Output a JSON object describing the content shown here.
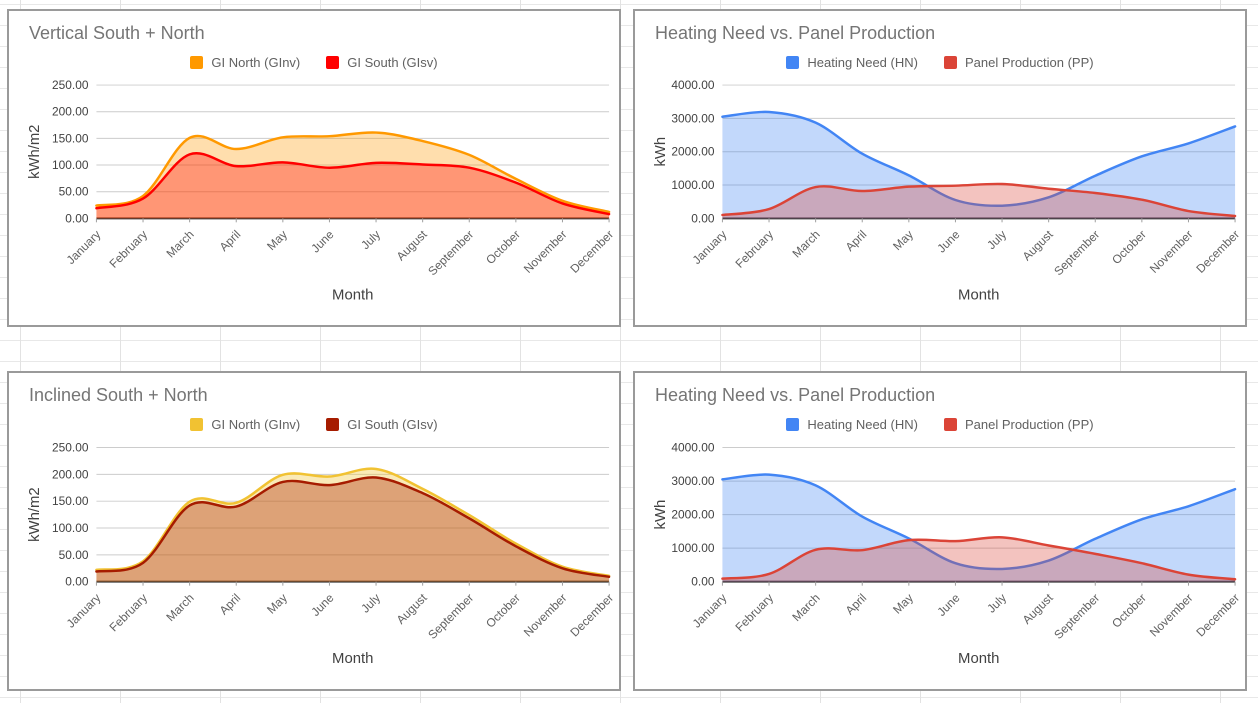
{
  "app": {
    "grid_line_color": "#e2e2e2",
    "card_border_color": "#9a9a9a",
    "title_color": "#757575",
    "axis_text_color": "#424242",
    "tick_text_color": "#616161",
    "gridline_color": "#cccccc"
  },
  "chart_data": [
    {
      "type": "area",
      "title": "Vertical South + North",
      "xlabel": "Month",
      "ylabel": "kWh/m2",
      "ylim": [
        0,
        250
      ],
      "y_ticks": [
        "0.00",
        "50.00",
        "100.00",
        "150.00",
        "200.00",
        "250.00"
      ],
      "grid": true,
      "legend_position": "top",
      "smooth": true,
      "fill_opacity": 0.32,
      "categories": [
        "January",
        "February",
        "March",
        "April",
        "May",
        "June",
        "July",
        "August",
        "September",
        "October",
        "November",
        "December"
      ],
      "series": [
        {
          "name": "GI North (GInv)",
          "color": "#ff9900",
          "values": [
            24,
            42,
            151,
            130,
            152,
            154,
            161,
            145,
            119,
            74,
            33,
            12
          ]
        },
        {
          "name": "GI South (GIsv)",
          "color": "#ff0000",
          "values": [
            19,
            37,
            120,
            98,
            105,
            95,
            104,
            101,
            95,
            67,
            28,
            8
          ]
        }
      ]
    },
    {
      "type": "area",
      "title": "Heating Need vs. Panel Production",
      "xlabel": "Month",
      "ylabel": "kWh",
      "ylim": [
        0,
        4000
      ],
      "y_ticks": [
        "0.00",
        "1000.00",
        "2000.00",
        "3000.00",
        "4000.00"
      ],
      "grid": true,
      "legend_position": "top",
      "smooth": true,
      "fill_opacity": 0.32,
      "categories": [
        "January",
        "February",
        "March",
        "April",
        "May",
        "June",
        "July",
        "August",
        "September",
        "October",
        "November",
        "December"
      ],
      "series": [
        {
          "name": "Heating Need (HN)",
          "color": "#4285f4",
          "values": [
            3050,
            3190,
            2870,
            1940,
            1290,
            550,
            380,
            630,
            1280,
            1860,
            2250,
            2760
          ]
        },
        {
          "name": "Panel Production (PP)",
          "color": "#db4437",
          "values": [
            100,
            280,
            940,
            820,
            950,
            980,
            1030,
            890,
            760,
            560,
            220,
            70
          ]
        }
      ]
    },
    {
      "type": "area",
      "title": "Inclined South + North",
      "xlabel": "Month",
      "ylabel": "kWh/m2",
      "ylim": [
        0,
        250
      ],
      "y_ticks": [
        "0.00",
        "50.00",
        "100.00",
        "150.00",
        "200.00",
        "250.00"
      ],
      "grid": true,
      "legend_position": "top",
      "smooth": true,
      "fill_opacity": 0.35,
      "categories": [
        "January",
        "February",
        "March",
        "April",
        "May",
        "June",
        "July",
        "August",
        "September",
        "October",
        "November",
        "December"
      ],
      "series": [
        {
          "name": "GI North (GInv)",
          "color": "#f1c232",
          "values": [
            22,
            38,
            149,
            147,
            199,
            196,
            210,
            173,
            124,
            71,
            28,
            11
          ]
        },
        {
          "name": "GI South (GIsv)",
          "color": "#a61c00",
          "values": [
            19,
            35,
            142,
            140,
            186,
            180,
            194,
            165,
            118,
            66,
            25,
            9
          ]
        }
      ]
    },
    {
      "type": "area",
      "title": "Heating Need vs. Panel Production",
      "xlabel": "Month",
      "ylabel": "kWh",
      "ylim": [
        0,
        4000
      ],
      "y_ticks": [
        "0.00",
        "1000.00",
        "2000.00",
        "3000.00",
        "4000.00"
      ],
      "grid": true,
      "legend_position": "top",
      "smooth": true,
      "fill_opacity": 0.32,
      "categories": [
        "January",
        "February",
        "March",
        "April",
        "May",
        "June",
        "July",
        "August",
        "September",
        "October",
        "November",
        "December"
      ],
      "series": [
        {
          "name": "Heating Need (HN)",
          "color": "#4285f4",
          "values": [
            3050,
            3190,
            2870,
            1940,
            1290,
            550,
            380,
            630,
            1280,
            1860,
            2250,
            2760
          ]
        },
        {
          "name": "Panel Production (PP)",
          "color": "#db4437",
          "values": [
            90,
            230,
            950,
            940,
            1240,
            1210,
            1320,
            1080,
            830,
            550,
            210,
            70
          ]
        }
      ]
    }
  ]
}
